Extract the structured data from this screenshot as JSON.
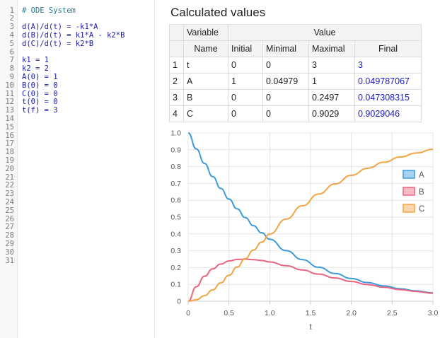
{
  "editor": {
    "lines": [
      {
        "n": "1",
        "text": "# ODE System",
        "kind": "comment"
      },
      {
        "n": "2",
        "text": ""
      },
      {
        "n": "3",
        "text": "d(A)/d(t) = -k1*A"
      },
      {
        "n": "4",
        "text": "d(B)/d(t) = k1*A - k2*B"
      },
      {
        "n": "5",
        "text": "d(C)/d(t) = k2*B"
      },
      {
        "n": "6",
        "text": ""
      },
      {
        "n": "7",
        "text": "k1 = 1"
      },
      {
        "n": "8",
        "text": "k2 = 2"
      },
      {
        "n": "9",
        "text": "A(0) = 1"
      },
      {
        "n": "10",
        "text": "B(0) = 0"
      },
      {
        "n": "11",
        "text": "C(0) = 0"
      },
      {
        "n": "12",
        "text": "t(0) = 0"
      },
      {
        "n": "13",
        "text": "t(f) = 3"
      },
      {
        "n": "14",
        "text": ""
      },
      {
        "n": "15",
        "text": ""
      },
      {
        "n": "16",
        "text": ""
      },
      {
        "n": "17",
        "text": ""
      },
      {
        "n": "18",
        "text": ""
      },
      {
        "n": "19",
        "text": ""
      },
      {
        "n": "20",
        "text": ""
      },
      {
        "n": "21",
        "text": ""
      },
      {
        "n": "22",
        "text": ""
      },
      {
        "n": "23",
        "text": ""
      },
      {
        "n": "24",
        "text": ""
      },
      {
        "n": "25",
        "text": ""
      },
      {
        "n": "26",
        "text": ""
      },
      {
        "n": "27",
        "text": ""
      },
      {
        "n": "28",
        "text": ""
      },
      {
        "n": "29",
        "text": ""
      },
      {
        "n": "30",
        "text": ""
      },
      {
        "n": "31",
        "text": ""
      }
    ]
  },
  "results": {
    "title": "Calculated values",
    "header": {
      "variable": "Variable",
      "value": "Value",
      "name": "Name",
      "initial": "Initial",
      "minimal": "Minimal",
      "maximal": "Maximal",
      "final": "Final"
    },
    "rows": [
      {
        "idx": "1",
        "name": "t",
        "initial": "0",
        "minimal": "0",
        "maximal": "3",
        "final": "3"
      },
      {
        "idx": "2",
        "name": "A",
        "initial": "1",
        "minimal": "0.04979",
        "maximal": "1",
        "final": "0.049787067"
      },
      {
        "idx": "3",
        "name": "B",
        "initial": "0",
        "minimal": "0",
        "maximal": "0.2497",
        "final": "0.047308315"
      },
      {
        "idx": "4",
        "name": "C",
        "initial": "0",
        "minimal": "0",
        "maximal": "0.9029",
        "final": "0.9029046"
      }
    ]
  },
  "chart_data": {
    "type": "line",
    "xlabel": "t",
    "ylabel": "",
    "xlim": [
      0,
      3
    ],
    "ylim": [
      0,
      1
    ],
    "x_ticks": [
      "0",
      "0.5",
      "1.0",
      "1.5",
      "2.0",
      "2.5",
      "3.0"
    ],
    "y_ticks": [
      "0",
      "0.1",
      "0.2",
      "0.3",
      "0.4",
      "0.5",
      "0.6",
      "0.7",
      "0.8",
      "0.9",
      "1.0"
    ],
    "grid": true,
    "legend_position": "right",
    "x": [
      0,
      0.1,
      0.2,
      0.3,
      0.4,
      0.5,
      0.6,
      0.7,
      0.8,
      0.9,
      1.0,
      1.2,
      1.4,
      1.6,
      1.8,
      2.0,
      2.2,
      2.4,
      2.6,
      2.8,
      3.0
    ],
    "series": [
      {
        "name": "A",
        "color": "#3c9bdb",
        "values": [
          1.0,
          0.905,
          0.819,
          0.741,
          0.67,
          0.607,
          0.549,
          0.497,
          0.449,
          0.407,
          0.368,
          0.301,
          0.247,
          0.202,
          0.165,
          0.135,
          0.111,
          0.091,
          0.074,
          0.061,
          0.0498
        ]
      },
      {
        "name": "B",
        "color": "#e8657f",
        "values": [
          0.0,
          0.086,
          0.148,
          0.192,
          0.221,
          0.239,
          0.248,
          0.25,
          0.247,
          0.242,
          0.233,
          0.211,
          0.186,
          0.161,
          0.138,
          0.117,
          0.099,
          0.083,
          0.069,
          0.058,
          0.0473
        ]
      },
      {
        "name": "C",
        "color": "#f3a445",
        "values": [
          0.0,
          0.009,
          0.033,
          0.067,
          0.109,
          0.154,
          0.203,
          0.253,
          0.304,
          0.351,
          0.399,
          0.488,
          0.567,
          0.637,
          0.697,
          0.748,
          0.79,
          0.826,
          0.857,
          0.881,
          0.903
        ]
      }
    ]
  }
}
